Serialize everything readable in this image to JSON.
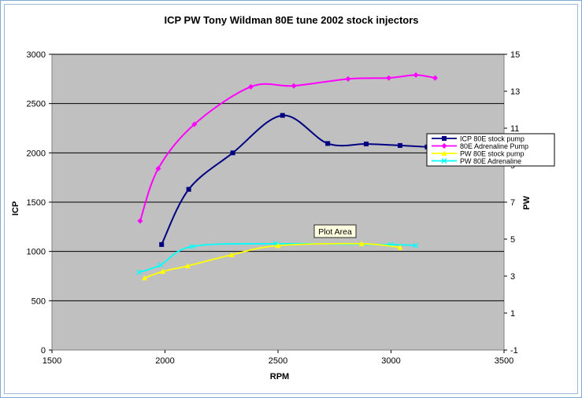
{
  "chart_data": {
    "type": "line",
    "title": "ICP PW Tony Wildman 80E tune 2002 stock injectors",
    "xlabel": "RPM",
    "ylabel": "ICP",
    "y2label": "PW",
    "xlim": [
      1500,
      3500
    ],
    "ylim": [
      0,
      3000
    ],
    "y2lim": [
      -1,
      15
    ],
    "x_ticks": [
      1500,
      2000,
      2500,
      3000,
      3500
    ],
    "y_ticks": [
      0,
      500,
      1000,
      1500,
      2000,
      2500,
      3000
    ],
    "y2_ticks": [
      -1,
      1,
      3,
      5,
      7,
      9,
      11,
      13,
      15
    ],
    "grid": true,
    "legend_position": "right",
    "tooltip": "Plot Area",
    "series": [
      {
        "name": "ICP 80E stock pump",
        "axis": "left",
        "color": "#000080",
        "marker": "square",
        "x": [
          1985,
          2105,
          2300,
          2520,
          2720,
          2890,
          3040,
          3160
        ],
        "y": [
          1070,
          1630,
          2000,
          2380,
          2095,
          2090,
          2075,
          2060
        ]
      },
      {
        "name": "80E Adrenaline Pump",
        "axis": "left",
        "color": "#ff00ff",
        "marker": "diamond",
        "x": [
          1890,
          1970,
          2130,
          2380,
          2570,
          2810,
          2990,
          3110,
          3195
        ],
        "y": [
          1310,
          1840,
          2290,
          2670,
          2680,
          2750,
          2760,
          2790,
          2760
        ]
      },
      {
        "name": "PW 80E stock pump",
        "axis": "right",
        "color": "#ffff00",
        "marker": "triangle",
        "x": [
          1910,
          1990,
          2100,
          2295,
          2500,
          2870,
          3040
        ],
        "y": [
          2.9,
          3.25,
          3.55,
          4.15,
          4.65,
          4.75,
          4.55
        ]
      },
      {
        "name": "PW 80E Adrenaline",
        "axis": "right",
        "color": "#00ffff",
        "marker": "x",
        "x": [
          1885,
          1980,
          2120,
          2490,
          3000,
          3110
        ],
        "y": [
          3.2,
          3.6,
          4.6,
          4.75,
          4.7,
          4.65
        ]
      }
    ]
  }
}
